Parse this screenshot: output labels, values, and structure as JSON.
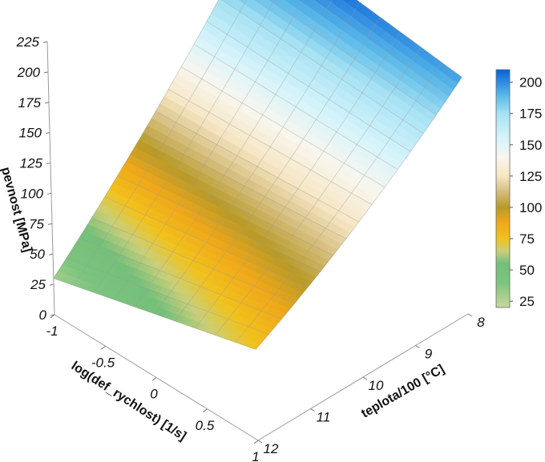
{
  "chart_data": {
    "type": "surface3d",
    "zlabel": "pevnost [MPa]",
    "xlabel": "log(def_rychlost) [1/s]",
    "ylabel": "teplota/100 [°C]",
    "x_ticks": [
      "-1",
      "-0.5",
      "0",
      "0.5",
      "1"
    ],
    "y_ticks": [
      "8",
      "9",
      "10",
      "11",
      "12"
    ],
    "z_ticks": [
      "0",
      "25",
      "50",
      "75",
      "100",
      "125",
      "150",
      "175",
      "200",
      "225"
    ],
    "colorbar_ticks": [
      "25",
      "50",
      "75",
      "100",
      "125",
      "150",
      "175",
      "200"
    ],
    "xlim": [
      -1,
      1
    ],
    "ylim": [
      8,
      12
    ],
    "zlim": [
      0,
      225
    ],
    "colorbar_range": [
      20,
      210
    ],
    "colorscale": [
      {
        "value": 20,
        "color": "#c9d79a"
      },
      {
        "value": 40,
        "color": "#7cc47e"
      },
      {
        "value": 55,
        "color": "#74bf7a"
      },
      {
        "value": 65,
        "color": "#c9cf7a"
      },
      {
        "value": 75,
        "color": "#f1c21c"
      },
      {
        "value": 88,
        "color": "#f0a81a"
      },
      {
        "value": 100,
        "color": "#b89a28"
      },
      {
        "value": 113,
        "color": "#d6bf80"
      },
      {
        "value": 125,
        "color": "#f6e6c4"
      },
      {
        "value": 140,
        "color": "#f8f6ee"
      },
      {
        "value": 155,
        "color": "#d6f4fb"
      },
      {
        "value": 175,
        "color": "#a6e2f3"
      },
      {
        "value": 190,
        "color": "#56b6e8"
      },
      {
        "value": 210,
        "color": "#0a60d8"
      }
    ],
    "surface_corners": [
      {
        "x": -1,
        "y": 12,
        "z": 30
      },
      {
        "x": 1,
        "y": 12,
        "z": 75
      },
      {
        "x": -1,
        "y": 8,
        "z": 215
      },
      {
        "x": 1,
        "y": 8,
        "z": 195
      }
    ],
    "grid": true
  }
}
